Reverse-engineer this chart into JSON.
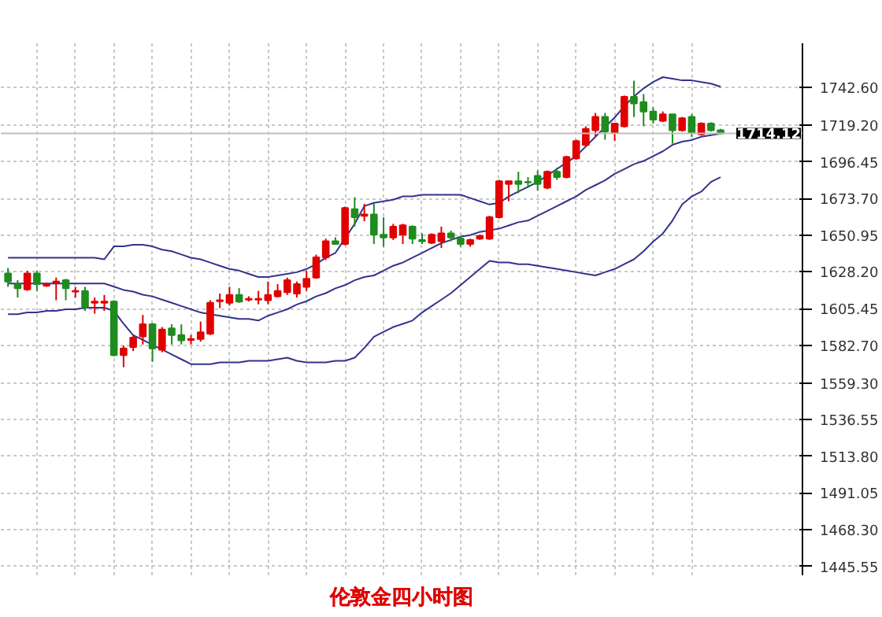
{
  "chart_data": {
    "type": "candlestick",
    "title": "伦敦金四小时图",
    "categories": [
      null,
      null,
      null,
      null,
      null,
      null,
      null,
      null,
      null,
      null,
      null,
      null,
      null,
      null,
      null,
      null,
      null,
      null,
      null,
      null,
      null,
      null,
      null,
      null,
      null,
      null,
      null,
      null,
      null,
      null,
      null,
      null,
      null,
      null,
      null,
      null,
      null,
      null,
      null,
      null,
      null,
      null,
      null,
      null,
      null,
      null,
      null,
      null,
      null,
      null,
      null,
      null,
      null,
      null,
      null,
      null,
      null,
      null,
      null,
      null,
      null,
      null,
      null,
      null,
      null,
      null,
      null,
      null,
      null,
      null,
      null,
      null,
      null,
      null,
      null
    ],
    "ohlc": [
      [
        1627.2,
        1630.6,
        1618.9,
        1622.2
      ],
      [
        1620.6,
        1623.1,
        1612.3,
        1618.1
      ],
      [
        1617.3,
        1628.9,
        1616.4,
        1627.2
      ],
      [
        1627.2,
        1628.9,
        1616.4,
        1620.6
      ],
      [
        1619.7,
        1621.4,
        1618.9,
        1620.6
      ],
      [
        1621.4,
        1624.7,
        1610.6,
        1622.2
      ],
      [
        1623.1,
        1623.9,
        1610.6,
        1618.1
      ],
      [
        1616.0,
        1618.9,
        1612.3,
        1616.4
      ],
      [
        1616.4,
        1618.9,
        1604.0,
        1606.5
      ],
      [
        1609.0,
        1612.3,
        1602.3,
        1609.8
      ],
      [
        1609.0,
        1613.9,
        1604.0,
        1609.8
      ],
      [
        1609.8,
        1610.6,
        1575.8,
        1576.6
      ],
      [
        1576.6,
        1582.4,
        1569.1,
        1580.7
      ],
      [
        1581.6,
        1589.0,
        1579.1,
        1587.4
      ],
      [
        1588.2,
        1601.5,
        1583.2,
        1595.7
      ],
      [
        1595.7,
        1596.5,
        1572.4,
        1580.7
      ],
      [
        1579.9,
        1594.0,
        1578.3,
        1592.4
      ],
      [
        1593.2,
        1595.7,
        1583.2,
        1589.0
      ],
      [
        1589.0,
        1595.7,
        1583.2,
        1585.7
      ],
      [
        1586.0,
        1589.0,
        1583.2,
        1586.6
      ],
      [
        1586.6,
        1597.4,
        1584.9,
        1590.7
      ],
      [
        1589.9,
        1610.6,
        1589.0,
        1609.0
      ],
      [
        1610.0,
        1614.8,
        1605.7,
        1610.6
      ],
      [
        1609.0,
        1618.9,
        1607.3,
        1613.9
      ],
      [
        1613.9,
        1618.1,
        1609.0,
        1609.8
      ],
      [
        1611.0,
        1613.1,
        1609.8,
        1611.5
      ],
      [
        1611.0,
        1616.4,
        1608.1,
        1611.5
      ],
      [
        1610.6,
        1622.2,
        1608.1,
        1613.9
      ],
      [
        1613.1,
        1620.6,
        1612.3,
        1616.4
      ],
      [
        1615.6,
        1624.7,
        1613.9,
        1623.1
      ],
      [
        1614.8,
        1622.2,
        1612.3,
        1620.6
      ],
      [
        1618.9,
        1628.9,
        1616.4,
        1623.9
      ],
      [
        1624.7,
        1638.9,
        1623.9,
        1637.2
      ],
      [
        1637.2,
        1648.8,
        1635.5,
        1647.2
      ],
      [
        1647.2,
        1649.6,
        1645.5,
        1645.5
      ],
      [
        1645.5,
        1668.7,
        1644.7,
        1667.9
      ],
      [
        1667.1,
        1674.5,
        1656.3,
        1662.1
      ],
      [
        1663.0,
        1670.4,
        1659.6,
        1663.8
      ],
      [
        1663.8,
        1670.4,
        1645.5,
        1651.3
      ],
      [
        1651.3,
        1662.1,
        1643.8,
        1649.6
      ],
      [
        1649.6,
        1658.0,
        1648.0,
        1656.3
      ],
      [
        1651.3,
        1658.0,
        1645.5,
        1657.1
      ],
      [
        1656.3,
        1657.1,
        1645.5,
        1648.8
      ],
      [
        1648.0,
        1652.1,
        1645.5,
        1647.2
      ],
      [
        1646.3,
        1652.1,
        1645.5,
        1651.3
      ],
      [
        1647.2,
        1656.3,
        1643.0,
        1652.1
      ],
      [
        1652.1,
        1653.8,
        1647.2,
        1649.6
      ],
      [
        1648.8,
        1650.5,
        1643.8,
        1645.5
      ],
      [
        1645.5,
        1648.8,
        1643.8,
        1648.0
      ],
      [
        1648.8,
        1651.3,
        1648.0,
        1650.5
      ],
      [
        1648.8,
        1663.0,
        1648.0,
        1662.1
      ],
      [
        1662.1,
        1685.3,
        1661.3,
        1684.5
      ],
      [
        1682.8,
        1684.5,
        1672.0,
        1684.5
      ],
      [
        1684.5,
        1690.3,
        1677.0,
        1682.8
      ],
      [
        1683.9,
        1687.0,
        1680.4,
        1683.7
      ],
      [
        1687.8,
        1691.1,
        1678.7,
        1682.8
      ],
      [
        1680.4,
        1691.1,
        1679.5,
        1690.3
      ],
      [
        1690.3,
        1692.8,
        1685.3,
        1687.0
      ],
      [
        1687.0,
        1700.2,
        1686.2,
        1699.4
      ],
      [
        1698.6,
        1710.2,
        1697.8,
        1709.4
      ],
      [
        1706.9,
        1718.5,
        1706.1,
        1716.9
      ],
      [
        1716.0,
        1726.8,
        1711.9,
        1724.3
      ],
      [
        1724.3,
        1726.8,
        1710.2,
        1715.2
      ],
      [
        1714.4,
        1720.2,
        1709.4,
        1720.2
      ],
      [
        1718.5,
        1737.6,
        1717.7,
        1736.8
      ],
      [
        1736.8,
        1746.8,
        1724.3,
        1732.6
      ],
      [
        1733.5,
        1738.5,
        1718.5,
        1727.7
      ],
      [
        1727.7,
        1730.2,
        1720.2,
        1722.7
      ],
      [
        1721.9,
        1727.7,
        1721.1,
        1726.0
      ],
      [
        1726.0,
        1726.0,
        1707.7,
        1716.0
      ],
      [
        1716.0,
        1724.3,
        1715.2,
        1723.5
      ],
      [
        1724.3,
        1726.0,
        1711.9,
        1714.4
      ],
      [
        1713.5,
        1721.0,
        1712.7,
        1720.2
      ],
      [
        1720.2,
        1721.0,
        1715.2,
        1716.0
      ],
      [
        1716.0,
        1716.9,
        1713.5,
        1714.12
      ]
    ],
    "colors": [
      "#1e8c1e",
      "#1e8c1e",
      "#e00000",
      "#1e8c1e",
      "#e00000",
      "#e00000",
      "#1e8c1e",
      "#e00000",
      "#1e8c1e",
      "#e00000",
      "#e00000",
      "#1e8c1e",
      "#e00000",
      "#e00000",
      "#e00000",
      "#1e8c1e",
      "#e00000",
      "#1e8c1e",
      "#1e8c1e",
      "#e00000",
      "#e00000",
      "#e00000",
      "#e00000",
      "#e00000",
      "#1e8c1e",
      "#e00000",
      "#e00000",
      "#e00000",
      "#e00000",
      "#e00000",
      "#e00000",
      "#e00000",
      "#e00000",
      "#e00000",
      "#1e8c1e",
      "#e00000",
      "#1e8c1e",
      "#e00000",
      "#1e8c1e",
      "#1e8c1e",
      "#e00000",
      "#e00000",
      "#1e8c1e",
      "#1e8c1e",
      "#e00000",
      "#e00000",
      "#1e8c1e",
      "#1e8c1e",
      "#e00000",
      "#e00000",
      "#e00000",
      "#e00000",
      "#e00000",
      "#1e8c1e",
      "#1e8c1e",
      "#1e8c1e",
      "#e00000",
      "#1e8c1e",
      "#e00000",
      "#e00000",
      "#e00000",
      "#e00000",
      "#1e8c1e",
      "#e00000",
      "#e00000",
      "#1e8c1e",
      "#1e8c1e",
      "#1e8c1e",
      "#e00000",
      "#1e8c1e",
      "#e00000",
      "#1e8c1e",
      "#e00000",
      "#1e8c1e",
      "#1e8c1e"
    ],
    "series": [
      {
        "type": "line",
        "color": "#33338c",
        "values": [
          1637,
          1637,
          1637,
          1637,
          1637,
          1637,
          1637,
          1637,
          1637,
          1637,
          1636,
          1644,
          1644,
          1645,
          1645,
          1644,
          1642,
          1641,
          1639,
          1637,
          1636,
          1634,
          1632,
          1630,
          1629,
          1627,
          1625,
          1625,
          1626,
          1627,
          1628,
          1630,
          1633,
          1637,
          1640,
          1649,
          1658,
          1669,
          1671,
          1672,
          1673,
          1675,
          1675,
          1676,
          1676,
          1676,
          1676,
          1676,
          1674,
          1672,
          1670,
          1671,
          1675,
          1678,
          1681,
          1684,
          1688,
          1692,
          1696,
          1700,
          1706,
          1712,
          1718,
          1724,
          1731,
          1737,
          1742,
          1746,
          1749,
          1748,
          1747,
          1747,
          1746,
          1745,
          1743
        ]
      },
      {
        "type": "line",
        "color": "#33338c",
        "values": [
          1621,
          1621,
          1621,
          1621,
          1621,
          1621,
          1621,
          1621,
          1621,
          1621,
          1621,
          1619,
          1617,
          1616,
          1614,
          1613,
          1611,
          1609,
          1607,
          1605,
          1603,
          1602,
          1601,
          1600,
          1599,
          1599,
          1598,
          1601,
          1603,
          1605,
          1608,
          1610,
          1613,
          1615,
          1618,
          1620,
          1623,
          1625,
          1626,
          1629,
          1632,
          1634,
          1637,
          1640,
          1643,
          1646,
          1648,
          1650,
          1651,
          1653,
          1654,
          1655,
          1657,
          1659,
          1660,
          1663,
          1666,
          1669,
          1672,
          1675,
          1679,
          1682,
          1685,
          1689,
          1692,
          1695,
          1697,
          1700,
          1703,
          1707,
          1709,
          1710,
          1712,
          1713,
          1714
        ]
      },
      {
        "type": "line",
        "color": "#33338c",
        "values": [
          1602,
          1602,
          1603,
          1603,
          1604,
          1604,
          1605,
          1605,
          1606,
          1606,
          1606,
          1604,
          1596,
          1589,
          1586,
          1583,
          1580,
          1577,
          1574,
          1571,
          1571,
          1571,
          1572,
          1572,
          1572,
          1573,
          1573,
          1573,
          1574,
          1575,
          1573,
          1572,
          1572,
          1572,
          1573,
          1573,
          1575,
          1581,
          1588,
          1591,
          1594,
          1596,
          1598,
          1603,
          1607,
          1611,
          1615,
          1620,
          1625,
          1630,
          1635,
          1634,
          1634,
          1633,
          1633,
          1632,
          1631,
          1630,
          1629,
          1628,
          1627,
          1626,
          1628,
          1630,
          1633,
          1636,
          1641,
          1647,
          1652,
          1660,
          1670,
          1675,
          1678,
          1684,
          1687
        ]
      }
    ],
    "ylim": [
      1440,
      1770
    ],
    "yticks": [
      {
        "value": 1742.6,
        "label": "1742.60"
      },
      {
        "value": 1719.2,
        "label": "1719.20"
      },
      {
        "value": 1696.45,
        "label": "1696.45"
      },
      {
        "value": 1673.7,
        "label": "1673.70"
      },
      {
        "value": 1650.95,
        "label": "1650.95"
      },
      {
        "value": 1628.2,
        "label": "1628.20"
      },
      {
        "value": 1605.45,
        "label": "1605.45"
      },
      {
        "value": 1582.7,
        "label": "1582.70"
      },
      {
        "value": 1559.3,
        "label": "1559.30"
      },
      {
        "value": 1536.55,
        "label": "1536.55"
      },
      {
        "value": 1513.8,
        "label": "1513.80"
      },
      {
        "value": 1491.05,
        "label": "1491.05"
      },
      {
        "value": 1468.3,
        "label": "1468.30"
      },
      {
        "value": 1445.55,
        "label": "1445.55"
      }
    ],
    "ref_lines": [
      {
        "axis": "y",
        "value": 1714.12,
        "label": "1714.12",
        "color": "#c0c0c0"
      }
    ],
    "grid": true,
    "tick_labels": "y"
  }
}
